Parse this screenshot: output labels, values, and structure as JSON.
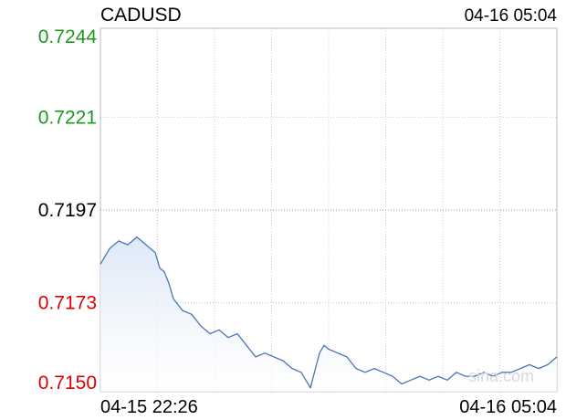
{
  "header": {
    "symbol": "CADUSD",
    "timestamp": "04-16 05:04"
  },
  "watermark": "sina.com",
  "colors": {
    "line": "#4a74b8",
    "fill_top": "#dde8f8",
    "fill_bottom": "#ffffff",
    "grid": "#cccccc",
    "above_prev_close": "#1a9a1a",
    "below_prev_close": "#e00000",
    "prev_close": "#000000"
  },
  "chart_data": {
    "type": "area",
    "title": "CADUSD",
    "x_start_label": "04-15 22:26",
    "x_end_label": "04-16 05:04",
    "ylim": [
      0.715,
      0.7244
    ],
    "prev_close": 0.7197,
    "y_ticks": [
      {
        "label": "0.7244",
        "value": 0.7244,
        "tone": "above"
      },
      {
        "label": "0.7221",
        "value": 0.7221,
        "tone": "above"
      },
      {
        "label": "0.7197",
        "value": 0.7197,
        "tone": "neutral"
      },
      {
        "label": "0.7173",
        "value": 0.7173,
        "tone": "below"
      },
      {
        "label": "0.7150",
        "value": 0.715,
        "tone": "below"
      }
    ],
    "grid": true,
    "x_fraction": [
      0.0,
      0.02,
      0.04,
      0.06,
      0.08,
      0.1,
      0.12,
      0.13,
      0.14,
      0.15,
      0.16,
      0.18,
      0.2,
      0.22,
      0.24,
      0.26,
      0.28,
      0.3,
      0.32,
      0.34,
      0.36,
      0.38,
      0.4,
      0.42,
      0.44,
      0.46,
      0.48,
      0.49,
      0.5,
      0.52,
      0.54,
      0.56,
      0.58,
      0.6,
      0.62,
      0.64,
      0.66,
      0.68,
      0.7,
      0.72,
      0.74,
      0.76,
      0.78,
      0.8,
      0.82,
      0.84,
      0.86,
      0.88,
      0.9,
      0.92,
      0.94,
      0.96,
      0.98,
      0.99,
      1.0
    ],
    "values": [
      0.7183,
      0.7187,
      0.7189,
      0.7188,
      0.719,
      0.7188,
      0.7186,
      0.7182,
      0.7181,
      0.7178,
      0.7174,
      0.7171,
      0.717,
      0.7167,
      0.7165,
      0.7166,
      0.7164,
      0.7165,
      0.7162,
      0.7159,
      0.716,
      0.7159,
      0.7158,
      0.7156,
      0.7155,
      0.7151,
      0.716,
      0.7162,
      0.7161,
      0.716,
      0.7159,
      0.7156,
      0.7155,
      0.7156,
      0.7155,
      0.7154,
      0.7152,
      0.7153,
      0.7154,
      0.7153,
      0.7154,
      0.7153,
      0.7155,
      0.7154,
      0.7154,
      0.7155,
      0.7154,
      0.7155,
      0.7155,
      0.7156,
      0.7157,
      0.7156,
      0.7157,
      0.7158,
      0.7159
    ]
  }
}
